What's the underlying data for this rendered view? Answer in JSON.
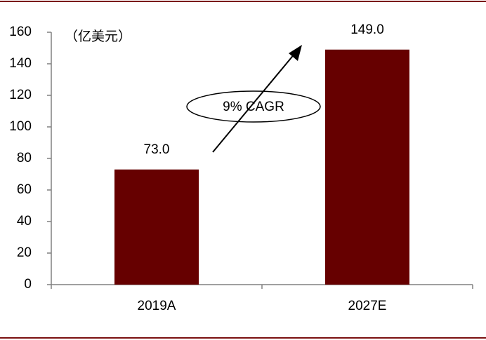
{
  "chart_data": {
    "type": "bar",
    "unit_label": "（亿美元）",
    "annotation": "9% CAGR",
    "categories": [
      "2019A",
      "2027E"
    ],
    "values": [
      73,
      149
    ],
    "value_labels": [
      "73.0",
      "149.0"
    ],
    "color": "#660000",
    "ylim": [
      0,
      160
    ],
    "yticks": [
      0,
      20,
      40,
      60,
      80,
      100,
      120,
      140,
      160
    ]
  }
}
